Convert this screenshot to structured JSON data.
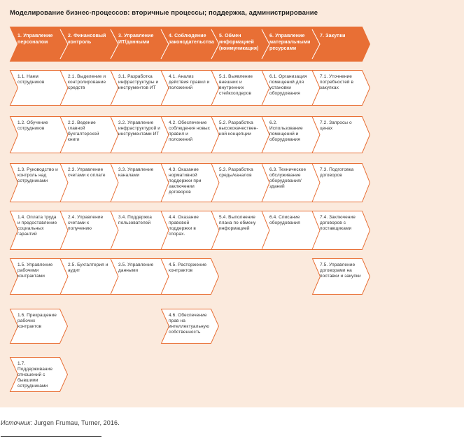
{
  "title": "Моделирование бизнес-процессов: вторичные процессы; поддержка, администрирование",
  "banner": {
    "cells": [
      "1. Управление персоналом",
      "2. Финансовый контроль",
      "3. Управление ИТ/данными",
      "4. Соблюдение законодательства",
      "5. Обмен информацией (коммуникация)",
      "6. Управление материальными ресурсами",
      "7. Закупки"
    ]
  },
  "grid": {
    "rows": [
      {
        "segments": [
          {
            "startCol": 0,
            "cells": [
              "1.1. Наем сотрудников",
              "2.1. Выделение и контролирование средств",
              "3.1. Разработка инфраструктуры и инструментов ИТ",
              "4.1. Анализ действия правил и положений",
              "5.1. Выявление внешних и внутренних стейкхолдеров",
              "6.1. Организация помещений для установки оборудования",
              "7.1. Уточнение потребностей в закупках"
            ]
          }
        ]
      },
      {
        "segments": [
          {
            "startCol": 0,
            "cells": [
              "1.2. Обучение сотрудников",
              "2.2. Ведение главной бухгалтерской книги",
              "3.2. Управление инфраструктурой и инструментами ИТ",
              "4.2. Обеспечение соблюдения новых правил и положений",
              "5.2. Разработка высококачествен-ной концепции",
              "6.2. Использование помещений и оборудования",
              "7.2. Запросы о ценах"
            ]
          }
        ]
      },
      {
        "segments": [
          {
            "startCol": 0,
            "cells": [
              "1.3. Руководство и контроль над сотрудниками",
              "2.3. Управление счетами к оплате",
              "3.3. Управление каналами",
              "4.3. Оказание нормативной поддержки при заключении договоров",
              "5.3. Разработка среды/каналов",
              "6.3. Техническое обслуживание оборудования/ зданий",
              "7.3. Подготовка договоров"
            ]
          }
        ]
      },
      {
        "segments": [
          {
            "startCol": 0,
            "cells": [
              "1.4. Оплата труда и предоставление социальных гарантий",
              "2.4. Управление счетами к получению",
              "3.4. Поддержка пользователей",
              "4.4. Оказание правовой поддержки в спорах.",
              "5.4. Выполнение плана по обмену информацией",
              "6.4. Списание оборудования",
              "7.4. Заключение договоров с поставщиками"
            ]
          }
        ]
      },
      {
        "segments": [
          {
            "startCol": 0,
            "cells": [
              "1.5. Управление рабочими контрактами",
              "2.5. Бухгалтерия и аудит",
              "3.5. Управление данными",
              "4.5. Расторжение контрактов"
            ]
          },
          {
            "startCol": 6,
            "cells": [
              "7.5. Управление договорами на поставки и закупки"
            ]
          }
        ]
      },
      {
        "segments": [
          {
            "startCol": 0,
            "cells": [
              "1.6. Прекращение рабочих контрактов"
            ]
          },
          {
            "startCol": 3,
            "cells": [
              "4.6. Обеспечение прав на интеллектуальную собственность"
            ]
          }
        ]
      },
      {
        "segments": [
          {
            "startCol": 0,
            "cells": [
              "1.7. Поддерживание отношений с бывшими сотрудниками"
            ]
          }
        ]
      }
    ]
  },
  "source": {
    "label": "Источник:",
    "text": "Jurgen Frumau, Turner, 2016."
  },
  "colors": {
    "accent": "#E86F35",
    "background": "#FBEADD",
    "box_fill": "#FFFFFF",
    "box_text": "#333333",
    "banner_text": "#FFFFFF"
  }
}
